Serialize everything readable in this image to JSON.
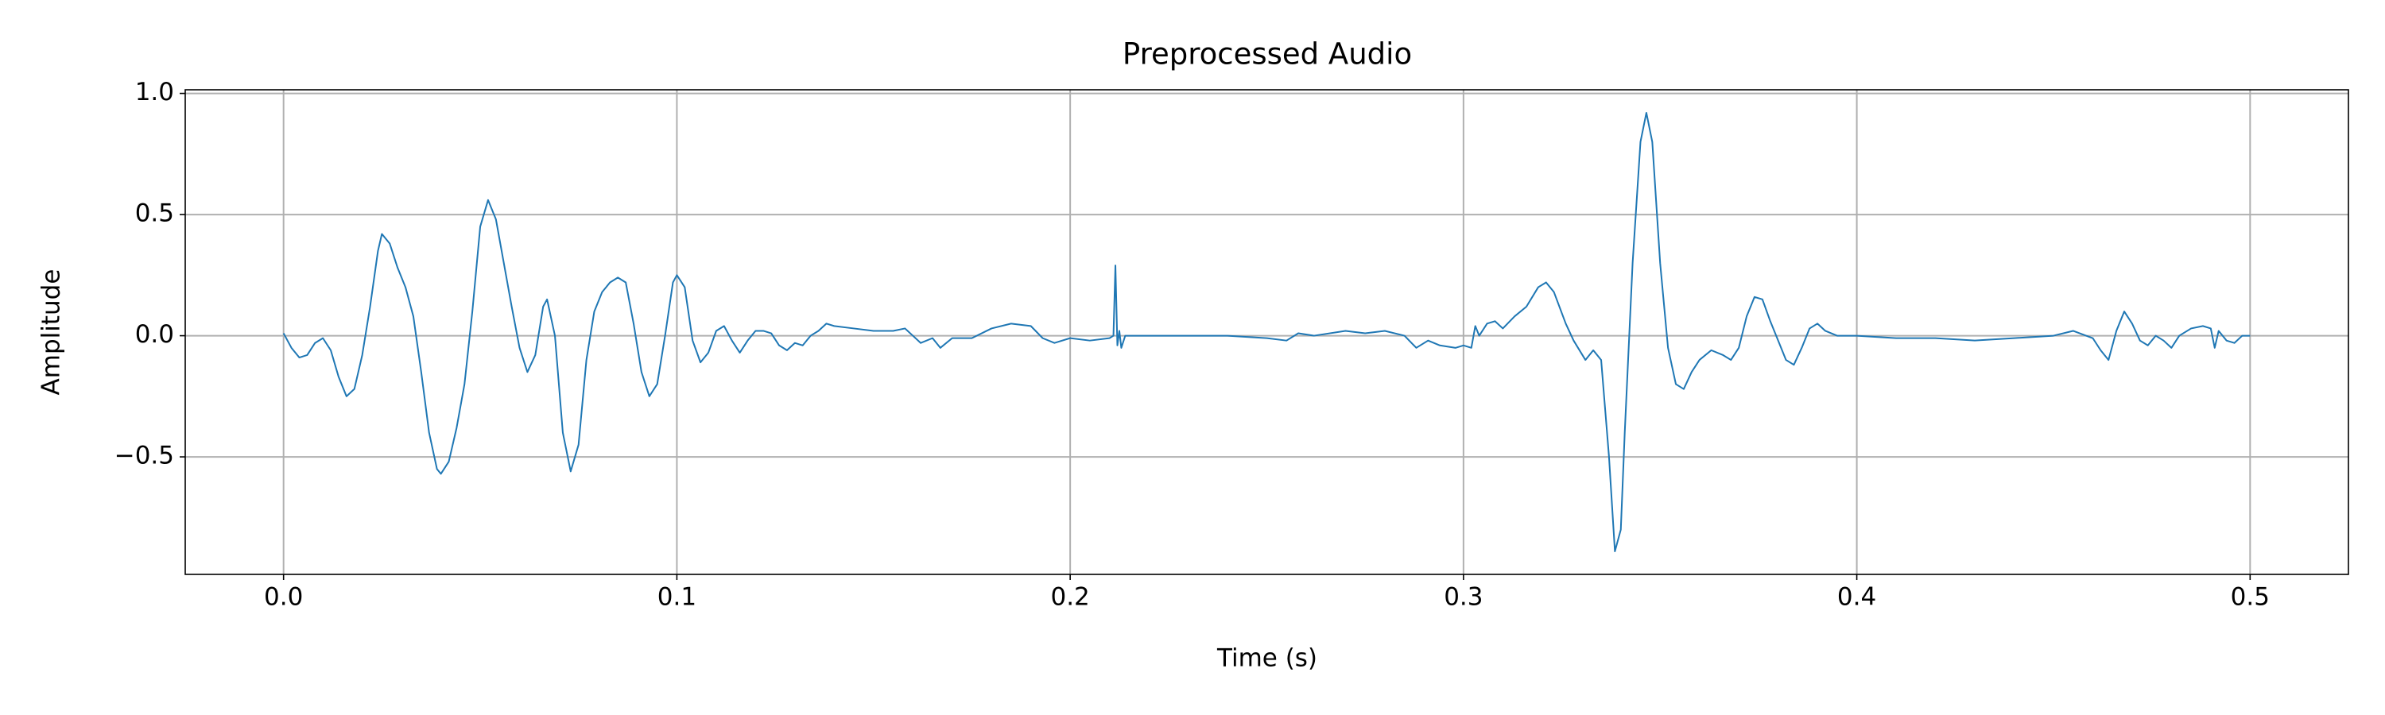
{
  "chart_data": {
    "type": "line",
    "title": "Preprocessed Audio",
    "xlabel": "Time (s)",
    "ylabel": "Amplitude",
    "xlim": [
      -0.025,
      0.525
    ],
    "ylim": [
      -0.985,
      1.015
    ],
    "xticks": [
      {
        "value": 0,
        "label": "0.0"
      },
      0.1,
      0.2,
      0.3,
      0.4,
      0.5
    ],
    "yticks": [
      {
        "value": -0.5,
        "label": "−0.5"
      },
      {
        "value": 0,
        "label": "0.0"
      },
      0.5,
      {
        "value": 1,
        "label": "1.0"
      }
    ],
    "grid": true,
    "x": [
      0,
      0.002,
      0.004,
      0.006,
      0.008,
      0.01,
      0.012,
      0.014,
      0.016,
      0.018,
      0.02,
      0.022,
      0.024,
      0.025,
      0.027,
      0.029,
      0.031,
      0.033,
      0.035,
      0.037,
      0.039,
      0.04,
      0.042,
      0.044,
      0.046,
      0.048,
      0.05,
      0.052,
      0.054,
      0.056,
      0.058,
      0.06,
      0.062,
      0.064,
      0.066,
      0.067,
      0.069,
      0.071,
      0.073,
      0.075,
      0.077,
      0.079,
      0.081,
      0.083,
      0.085,
      0.087,
      0.089,
      0.091,
      0.093,
      0.095,
      0.097,
      0.099,
      0.1,
      0.102,
      0.104,
      0.106,
      0.108,
      0.11,
      0.112,
      0.114,
      0.116,
      0.118,
      0.12,
      0.122,
      0.124,
      0.126,
      0.128,
      0.13,
      0.132,
      0.134,
      0.136,
      0.138,
      0.14,
      0.145,
      0.15,
      0.155,
      0.158,
      0.16,
      0.162,
      0.165,
      0.167,
      0.17,
      0.175,
      0.18,
      0.185,
      0.19,
      0.193,
      0.196,
      0.2,
      0.205,
      0.21,
      0.211,
      0.2115,
      0.212,
      0.2125,
      0.213,
      0.214,
      0.22,
      0.23,
      0.24,
      0.25,
      0.255,
      0.258,
      0.262,
      0.27,
      0.275,
      0.28,
      0.285,
      0.288,
      0.291,
      0.294,
      0.298,
      0.3,
      0.302,
      0.303,
      0.304,
      0.306,
      0.308,
      0.31,
      0.313,
      0.316,
      0.319,
      0.321,
      0.323,
      0.326,
      0.328,
      0.331,
      0.333,
      0.335,
      0.337,
      0.3385,
      0.34,
      0.341,
      0.343,
      0.345,
      0.3465,
      0.348,
      0.35,
      0.352,
      0.354,
      0.356,
      0.358,
      0.36,
      0.363,
      0.366,
      0.368,
      0.37,
      0.372,
      0.374,
      0.376,
      0.378,
      0.38,
      0.382,
      0.384,
      0.386,
      0.388,
      0.39,
      0.392,
      0.395,
      0.4,
      0.41,
      0.42,
      0.43,
      0.44,
      0.45,
      0.455,
      0.46,
      0.462,
      0.464,
      0.466,
      0.468,
      0.47,
      0.472,
      0.474,
      0.476,
      0.478,
      0.48,
      0.482,
      0.485,
      0.488,
      0.49,
      0.491,
      0.492,
      0.494,
      0.496,
      0.498,
      0.5
    ],
    "series": [
      {
        "color": "#1f77b4",
        "values": [
          0.01,
          -0.05,
          -0.09,
          -0.08,
          -0.03,
          -0.01,
          -0.06,
          -0.17,
          -0.25,
          -0.22,
          -0.08,
          0.12,
          0.35,
          0.42,
          0.38,
          0.28,
          0.2,
          0.08,
          -0.15,
          -0.4,
          -0.55,
          -0.57,
          -0.52,
          -0.38,
          -0.2,
          0.1,
          0.45,
          0.56,
          0.48,
          0.3,
          0.12,
          -0.05,
          -0.15,
          -0.08,
          0.12,
          0.15,
          0.0,
          -0.4,
          -0.56,
          -0.45,
          -0.1,
          0.1,
          0.18,
          0.22,
          0.24,
          0.22,
          0.05,
          -0.15,
          -0.25,
          -0.2,
          0.0,
          0.22,
          0.25,
          0.2,
          -0.02,
          -0.11,
          -0.07,
          0.02,
          0.04,
          -0.02,
          -0.07,
          -0.02,
          0.02,
          0.02,
          0.01,
          -0.04,
          -0.06,
          -0.03,
          -0.04,
          0.0,
          0.02,
          0.05,
          0.04,
          0.03,
          0.02,
          0.02,
          0.03,
          0.0,
          -0.03,
          -0.01,
          -0.05,
          -0.01,
          -0.01,
          0.03,
          0.05,
          0.04,
          -0.01,
          -0.03,
          -0.01,
          -0.02,
          -0.01,
          0.0,
          0.29,
          -0.04,
          0.02,
          -0.05,
          0.0,
          0.0,
          0.0,
          0.0,
          -0.01,
          -0.02,
          0.01,
          0.0,
          0.02,
          0.01,
          0.02,
          0.0,
          -0.05,
          -0.02,
          -0.04,
          -0.05,
          -0.04,
          -0.05,
          0.04,
          0.0,
          0.05,
          0.06,
          0.03,
          0.08,
          0.12,
          0.2,
          0.22,
          0.18,
          0.05,
          -0.02,
          -0.1,
          -0.06,
          -0.1,
          -0.5,
          -0.89,
          -0.8,
          -0.4,
          0.3,
          0.8,
          0.92,
          0.8,
          0.3,
          -0.05,
          -0.2,
          -0.22,
          -0.15,
          -0.1,
          -0.06,
          -0.08,
          -0.1,
          -0.05,
          0.08,
          0.16,
          0.15,
          0.06,
          -0.02,
          -0.1,
          -0.12,
          -0.05,
          0.03,
          0.05,
          0.02,
          0.0,
          0.0,
          -0.01,
          -0.01,
          -0.02,
          -0.01,
          0.0,
          0.02,
          -0.01,
          -0.06,
          -0.1,
          0.02,
          0.1,
          0.05,
          -0.02,
          -0.04,
          0.0,
          -0.02,
          -0.05,
          0.0,
          0.03,
          0.04,
          0.03,
          -0.05,
          0.02,
          -0.02,
          -0.03,
          0.0,
          0.0
        ]
      }
    ]
  }
}
